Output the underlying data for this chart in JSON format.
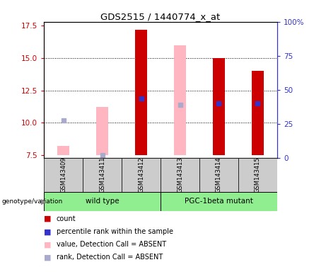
{
  "title": "GDS2515 / 1440774_x_at",
  "samples": [
    "GSM143409",
    "GSM143411",
    "GSM143412",
    "GSM143413",
    "GSM143414",
    "GSM143415"
  ],
  "ylim_left": [
    7.3,
    17.8
  ],
  "ylim_right": [
    0,
    100
  ],
  "yticks_left": [
    7.5,
    10.0,
    12.5,
    15.0,
    17.5
  ],
  "yticks_right": [
    0,
    25,
    50,
    75,
    100
  ],
  "red_bars_present": [
    false,
    false,
    true,
    false,
    true,
    true
  ],
  "red_bars_top": [
    null,
    null,
    17.2,
    null,
    15.0,
    14.0
  ],
  "red_bars_bot": [
    null,
    null,
    7.5,
    null,
    7.5,
    7.5
  ],
  "pink_bars_present": [
    true,
    true,
    false,
    true,
    false,
    false
  ],
  "pink_bars_top": [
    8.2,
    11.2,
    null,
    16.0,
    null,
    null
  ],
  "pink_bars_bot": [
    7.5,
    7.5,
    null,
    7.5,
    null,
    null
  ],
  "blue_sq_present": [
    false,
    false,
    true,
    false,
    true,
    true
  ],
  "blue_sq_y": [
    null,
    null,
    11.9,
    null,
    11.5,
    11.5
  ],
  "lblue_sq_present": [
    true,
    true,
    false,
    true,
    false,
    false
  ],
  "lblue_sq_y": [
    10.2,
    7.5,
    null,
    11.4,
    null,
    null
  ],
  "bar_width": 0.3,
  "red_color": "#CC0000",
  "pink_color": "#FFB6C1",
  "blue_color": "#3333CC",
  "lightblue_color": "#AAAACC",
  "bg_color": "#FFFFFF",
  "left_tick_color": "#CC0000",
  "right_tick_color": "#3333CC",
  "gray_box_color": "#CCCCCC",
  "green_box_color": "#90EE90",
  "legend_items": [
    {
      "color": "#CC0000",
      "label": "count"
    },
    {
      "color": "#3333CC",
      "label": "percentile rank within the sample"
    },
    {
      "color": "#FFB6C1",
      "label": "value, Detection Call = ABSENT"
    },
    {
      "color": "#AAAACC",
      "label": "rank, Detection Call = ABSENT"
    }
  ]
}
